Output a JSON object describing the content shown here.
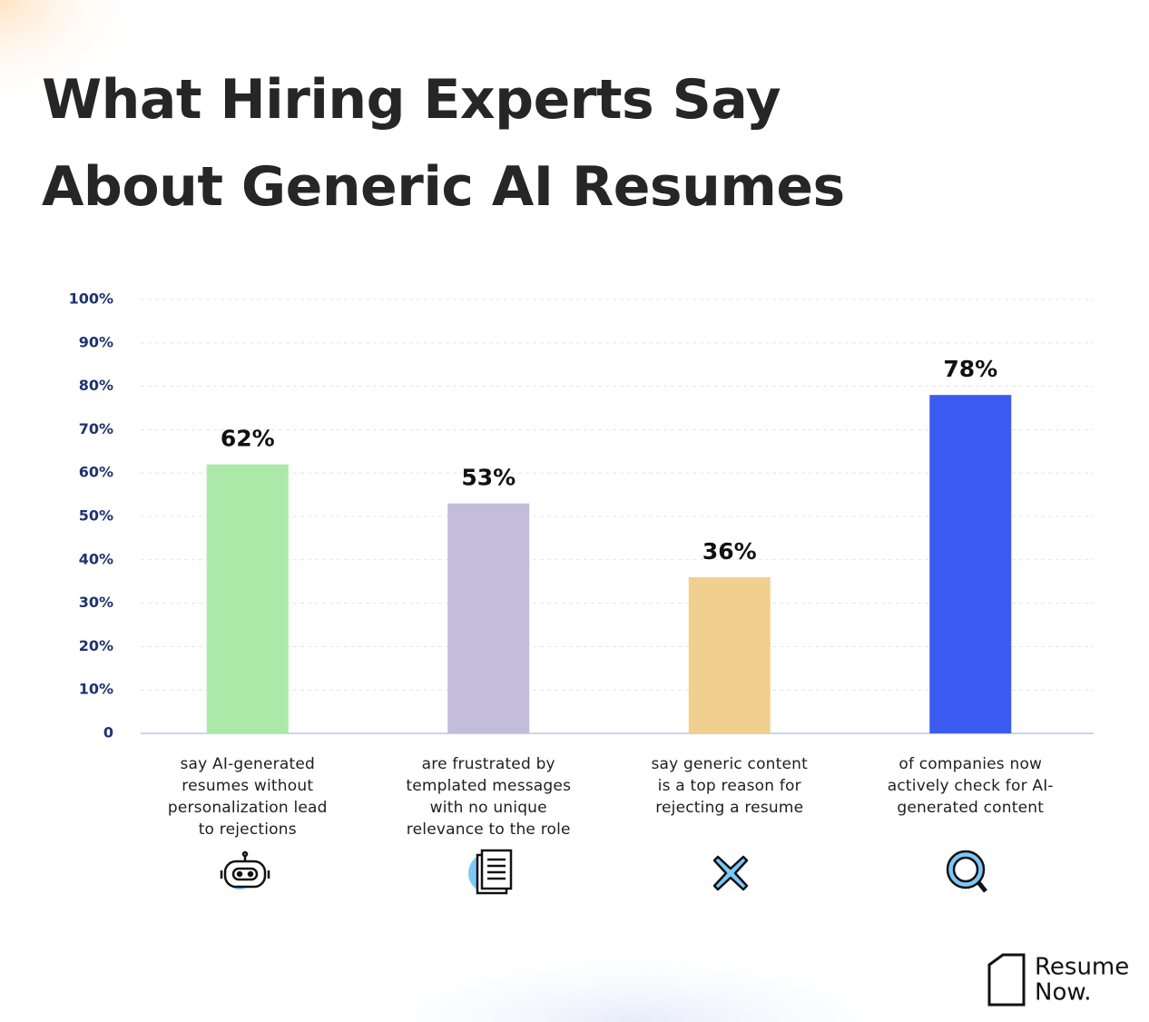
{
  "chart_data": {
    "type": "bar",
    "title": "What Hiring Experts Say About Generic AI Resumes",
    "categories": [
      "say AI-generated resumes without personalization lead to rejections",
      "are frustrated by templated messages with no unique relevance to the role",
      "say generic content is a top reason for rejecting a resume",
      "of companies now actively check for AI-generated content"
    ],
    "values": [
      62,
      53,
      36,
      78
    ],
    "value_labels": [
      "62%",
      "53%",
      "36%",
      "78%"
    ],
    "colors": [
      "#abe9a8",
      "#c3bcdb",
      "#f0cf8f",
      "#3b5bf0"
    ],
    "ylim": [
      0,
      100
    ],
    "yticks": [
      0,
      {
        "value": 10,
        "label": "10%"
      },
      {
        "value": 20,
        "label": "20%"
      },
      {
        "value": 30,
        "label": "30%"
      },
      {
        "value": 40,
        "label": "40%"
      },
      {
        "value": 50,
        "label": "50%"
      },
      {
        "value": 60,
        "label": "60%"
      },
      {
        "value": 70,
        "label": "70%"
      },
      {
        "value": 80,
        "label": "80%"
      },
      {
        "value": 90,
        "label": "90%"
      },
      {
        "value": 100,
        "label": "100%"
      }
    ],
    "grid": true,
    "logo": "Resume Now."
  }
}
